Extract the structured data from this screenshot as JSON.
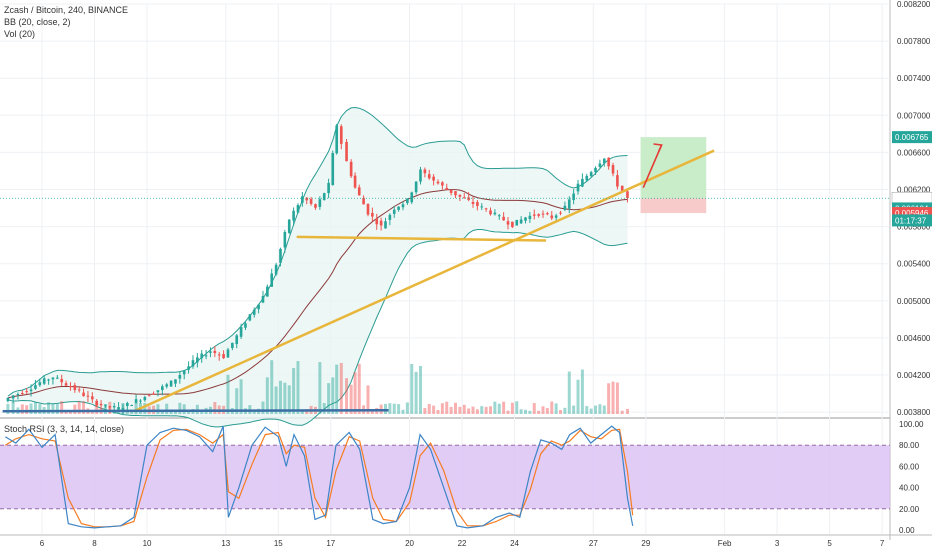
{
  "header": {
    "title": "Zcash / Bitcoin, 240, BINANCE",
    "indicator_bb": "BB (20, close, 2)",
    "indicator_vol": "Vol (20)",
    "indicator_stoch": "Stoch RSI (3, 3, 14, 14, close)"
  },
  "colors": {
    "up": "#26a69a",
    "down": "#ef5350",
    "bb_band": "#2b9c93",
    "bb_basis": "#8b3a3a",
    "bb_fill": "#e8f5f3",
    "trend_line": "#e8b63b",
    "support_line_blue": "#3a6ea5",
    "stoch_k": "#3d85c6",
    "stoch_d": "#f57c22",
    "stoch_band": "#dcc3f5",
    "target_zone": "#c9ecc9",
    "stop_zone": "#f8cbcb",
    "arrow": "#e53935",
    "tag_green": "#26a69a",
    "tag_red": "#ef5350"
  },
  "chart_data": [
    {
      "type": "candlestick",
      "title": "Zcash / Bitcoin, 240, BINANCE",
      "y_ticks": [
        "0.008200",
        "0.007800",
        "0.007400",
        "0.007000",
        "0.006600",
        "0.006200",
        "0.005800",
        "0.005400",
        "0.005000",
        "0.004600",
        "0.004200",
        "0.003800"
      ],
      "ylim": [
        0.00378,
        0.0082
      ],
      "x_ticks": [
        "6",
        "8",
        "10",
        "13",
        "15",
        "17",
        "20",
        "22",
        "24",
        "27",
        "29",
        "Feb",
        "3",
        "5",
        "7"
      ],
      "x_tick_days": [
        6,
        8,
        10,
        13,
        15,
        17,
        20,
        22,
        24,
        27,
        29,
        32,
        34,
        36,
        38
      ],
      "x_range_days": [
        4.4,
        38.3
      ],
      "close_series": [
        [
          4.6,
          0.00392
        ],
        [
          5.0,
          0.00398
        ],
        [
          5.5,
          0.00404
        ],
        [
          6.0,
          0.00412
        ],
        [
          6.5,
          0.00418
        ],
        [
          7.0,
          0.0041
        ],
        [
          7.5,
          0.00402
        ],
        [
          8.0,
          0.00392
        ],
        [
          8.5,
          0.00386
        ],
        [
          9.0,
          0.00384
        ],
        [
          9.5,
          0.0039
        ],
        [
          10.0,
          0.00397
        ],
        [
          10.5,
          0.00404
        ],
        [
          11.0,
          0.00412
        ],
        [
          11.5,
          0.00425
        ],
        [
          12.0,
          0.00438
        ],
        [
          12.5,
          0.00446
        ],
        [
          13.0,
          0.0044
        ],
        [
          13.5,
          0.00462
        ],
        [
          14.0,
          0.00485
        ],
        [
          14.5,
          0.00505
        ],
        [
          15.0,
          0.0054
        ],
        [
          15.5,
          0.00588
        ],
        [
          16.0,
          0.00612
        ],
        [
          16.5,
          0.006
        ],
        [
          17.0,
          0.00625
        ],
        [
          17.3,
          0.0069
        ],
        [
          17.7,
          0.0065
        ],
        [
          18.0,
          0.00622
        ],
        [
          18.5,
          0.00595
        ],
        [
          19.0,
          0.0058
        ],
        [
          19.5,
          0.006
        ],
        [
          20.0,
          0.00608
        ],
        [
          20.5,
          0.0064
        ],
        [
          21.0,
          0.0063
        ],
        [
          21.5,
          0.0062
        ],
        [
          22.0,
          0.00612
        ],
        [
          22.5,
          0.00605
        ],
        [
          23.0,
          0.00598
        ],
        [
          23.5,
          0.0059
        ],
        [
          24.0,
          0.00582
        ],
        [
          24.5,
          0.0059
        ],
        [
          25.0,
          0.00594
        ],
        [
          25.5,
          0.0059
        ],
        [
          26.0,
          0.006
        ],
        [
          26.5,
          0.00625
        ],
        [
          27.0,
          0.0064
        ],
        [
          27.5,
          0.00655
        ],
        [
          28.0,
          0.00625
        ],
        [
          28.4,
          0.0061
        ]
      ],
      "current_price": "0.006106",
      "countdown": "01:17:37",
      "price_tags": [
        {
          "label": "0.006765",
          "value": 0.006765,
          "color": "green"
        },
        {
          "label": "0.006106",
          "value": 0.006106,
          "color": "dark"
        },
        {
          "label": "0.006104",
          "value": 0.006104,
          "color": "green"
        },
        {
          "label": "0.005946",
          "value": 0.005946,
          "color": "red"
        }
      ],
      "position": {
        "entry": 0.006104,
        "target": 0.006765,
        "stop": 0.005946,
        "start_day": 28.8,
        "end_day": 31.3
      },
      "trend_lines": [
        {
          "from": [
            9.5,
            0.00381
          ],
          "to": [
            31.6,
            0.00662
          ]
        },
        {
          "from": [
            15.7,
            0.00569
          ],
          "to": [
            25.2,
            0.00565
          ]
        }
      ],
      "grid": true
    },
    {
      "type": "line",
      "title": "Stoch RSI (3, 3, 14, 14, close)",
      "y_ticks": [
        "100.00",
        "80.00",
        "60.00",
        "40.00",
        "20.00",
        "0.00"
      ],
      "ylim": [
        0,
        100
      ],
      "band": [
        20,
        80
      ],
      "series": [
        {
          "values": [
            [
              4.6,
              88
            ],
            [
              5.0,
              82
            ],
            [
              5.5,
              95
            ],
            [
              6.0,
              78
            ],
            [
              6.5,
              90
            ],
            [
              7.0,
              6
            ],
            [
              7.5,
              3
            ],
            [
              8.0,
              2
            ],
            [
              8.5,
              3
            ],
            [
              9.0,
              4
            ],
            [
              9.5,
              12
            ],
            [
              10.0,
              80
            ],
            [
              10.5,
              92
            ],
            [
              11.0,
              96
            ],
            [
              11.5,
              94
            ],
            [
              12.0,
              88
            ],
            [
              12.5,
              74
            ],
            [
              12.9,
              98
            ],
            [
              13.1,
              12
            ],
            [
              13.5,
              40
            ],
            [
              14.0,
              80
            ],
            [
              14.5,
              97
            ],
            [
              15.0,
              88
            ],
            [
              15.3,
              60
            ],
            [
              15.6,
              90
            ],
            [
              16.0,
              70
            ],
            [
              16.4,
              10
            ],
            [
              16.8,
              14
            ],
            [
              17.2,
              80
            ],
            [
              17.7,
              92
            ],
            [
              18.1,
              76
            ],
            [
              18.6,
              10
            ],
            [
              19.0,
              6
            ],
            [
              19.5,
              8
            ],
            [
              20.0,
              40
            ],
            [
              20.4,
              90
            ],
            [
              20.8,
              76
            ],
            [
              21.3,
              40
            ],
            [
              21.8,
              4
            ],
            [
              22.2,
              2
            ],
            [
              22.8,
              4
            ],
            [
              23.3,
              12
            ],
            [
              23.8,
              16
            ],
            [
              24.2,
              12
            ],
            [
              24.6,
              55
            ],
            [
              25.0,
              85
            ],
            [
              25.4,
              82
            ],
            [
              25.8,
              76
            ],
            [
              26.1,
              90
            ],
            [
              26.5,
              96
            ],
            [
              26.9,
              82
            ],
            [
              27.3,
              90
            ],
            [
              27.7,
              98
            ],
            [
              28.0,
              92
            ],
            [
              28.3,
              30
            ],
            [
              28.5,
              4
            ]
          ]
        },
        {
          "values": [
            [
              4.6,
              80
            ],
            [
              5.0,
              86
            ],
            [
              5.5,
              90
            ],
            [
              6.0,
              86
            ],
            [
              6.5,
              84
            ],
            [
              7.0,
              30
            ],
            [
              7.5,
              6
            ],
            [
              8.0,
              3
            ],
            [
              8.5,
              3
            ],
            [
              9.0,
              4
            ],
            [
              9.5,
              8
            ],
            [
              10.0,
              50
            ],
            [
              10.5,
              85
            ],
            [
              11.0,
              94
            ],
            [
              11.5,
              95
            ],
            [
              12.0,
              90
            ],
            [
              12.5,
              82
            ],
            [
              12.9,
              90
            ],
            [
              13.1,
              36
            ],
            [
              13.5,
              30
            ],
            [
              14.0,
              62
            ],
            [
              14.5,
              90
            ],
            [
              15.0,
              92
            ],
            [
              15.3,
              72
            ],
            [
              15.6,
              80
            ],
            [
              16.0,
              78
            ],
            [
              16.4,
              30
            ],
            [
              16.8,
              12
            ],
            [
              17.2,
              56
            ],
            [
              17.7,
              88
            ],
            [
              18.1,
              84
            ],
            [
              18.6,
              30
            ],
            [
              19.0,
              10
            ],
            [
              19.5,
              8
            ],
            [
              20.0,
              26
            ],
            [
              20.4,
              70
            ],
            [
              20.8,
              82
            ],
            [
              21.3,
              56
            ],
            [
              21.8,
              18
            ],
            [
              22.2,
              4
            ],
            [
              22.8,
              4
            ],
            [
              23.3,
              8
            ],
            [
              23.8,
              14
            ],
            [
              24.2,
              14
            ],
            [
              24.6,
              38
            ],
            [
              25.0,
              72
            ],
            [
              25.4,
              84
            ],
            [
              25.8,
              80
            ],
            [
              26.1,
              84
            ],
            [
              26.5,
              94
            ],
            [
              26.9,
              88
            ],
            [
              27.3,
              86
            ],
            [
              27.7,
              94
            ],
            [
              28.0,
              95
            ],
            [
              28.3,
              55
            ],
            [
              28.5,
              14
            ]
          ]
        }
      ]
    }
  ]
}
